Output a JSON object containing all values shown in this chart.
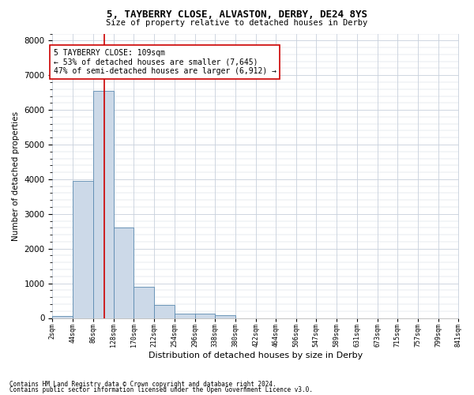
{
  "title1": "5, TAYBERRY CLOSE, ALVASTON, DERBY, DE24 8YS",
  "title2": "Size of property relative to detached houses in Derby",
  "xlabel": "Distribution of detached houses by size in Derby",
  "ylabel": "Number of detached properties",
  "footnote1": "Contains HM Land Registry data © Crown copyright and database right 2024.",
  "footnote2": "Contains public sector information licensed under the Open Government Licence v3.0.",
  "bin_edges": [
    2,
    44,
    86,
    128,
    170,
    212,
    254,
    296,
    338,
    380,
    422,
    464,
    506,
    547,
    589,
    631,
    673,
    715,
    757,
    799,
    841
  ],
  "bar_heights": [
    50,
    3950,
    6550,
    2600,
    900,
    370,
    120,
    120,
    70,
    0,
    0,
    0,
    0,
    0,
    0,
    0,
    0,
    0,
    0,
    0
  ],
  "bar_color": "#ccd9e8",
  "bar_edge_color": "#5b8ab0",
  "property_size": 109,
  "vline_color": "#cc0000",
  "annotation_text": "5 TAYBERRY CLOSE: 109sqm\n← 53% of detached houses are smaller (7,645)\n47% of semi-detached houses are larger (6,912) →",
  "annotation_box_color": "#ffffff",
  "annotation_box_edge_color": "#cc0000",
  "ylim": [
    0,
    8200
  ],
  "ytick_values": [
    0,
    1000,
    2000,
    3000,
    4000,
    5000,
    6000,
    7000,
    8000
  ],
  "background_color": "#ffffff",
  "grid_color": "#c8d0dc"
}
